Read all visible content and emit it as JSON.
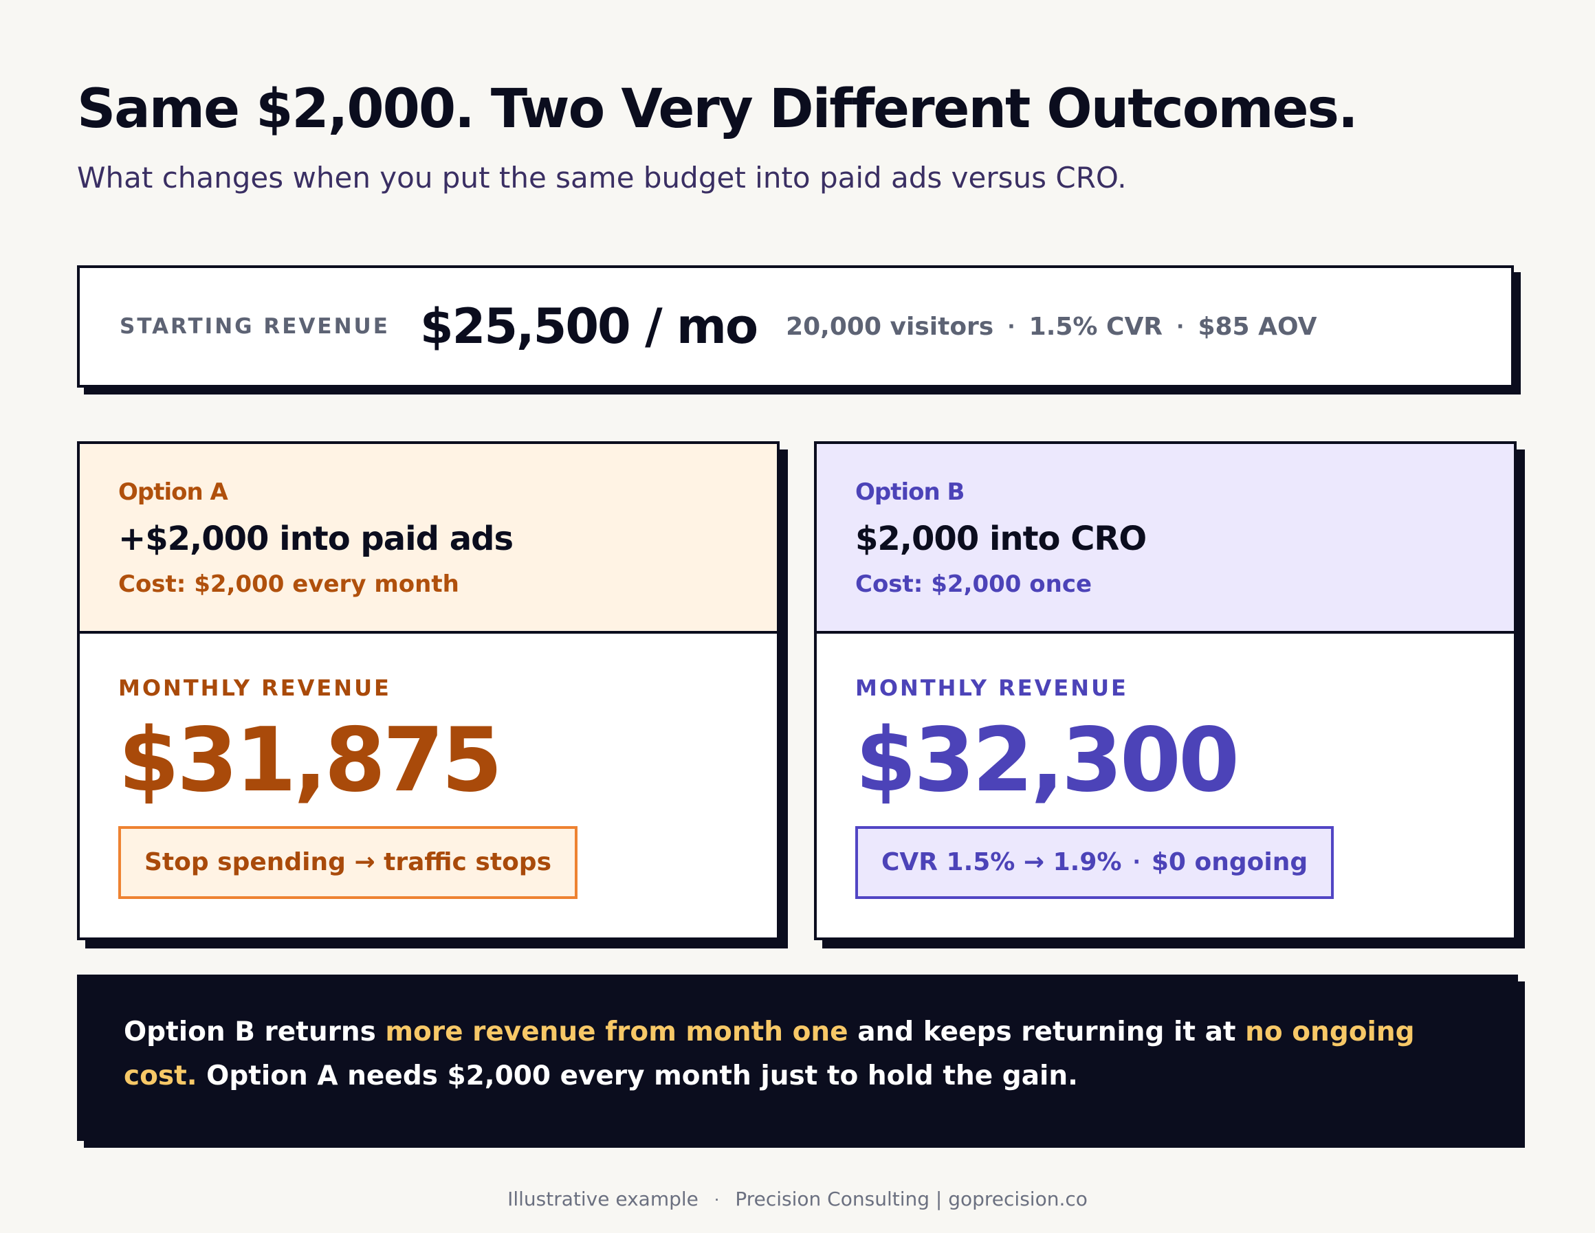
{
  "header": {
    "title": "Same $2,000. Two Very Different Outcomes.",
    "subtitle": "What changes when you put the same budget into paid ads versus CRO."
  },
  "starting": {
    "label": "STARTING REVENUE",
    "value": "$25,500 / mo",
    "metrics": [
      "20,000 visitors",
      "1.5% CVR",
      "$85 AOV"
    ],
    "separator": "·"
  },
  "option_a": {
    "label": "Option A",
    "title": "+$2,000 into paid ads",
    "cost": "Cost: $2,000 every month",
    "revenue_label": "MONTHLY REVENUE",
    "revenue_value": "$31,875",
    "note": "Stop spending → traffic stops",
    "accent": "#a94a0a"
  },
  "option_b": {
    "label": "Option B",
    "title": "$2,000 into CRO",
    "cost": "Cost: $2,000 once",
    "revenue_label": "MONTHLY REVENUE",
    "revenue_value": "$32,300",
    "note_part1": "CVR 1.5% → 1.9%",
    "note_sep": "·",
    "note_part2": "$0 ongoing",
    "accent": "#4c43b8"
  },
  "summary": {
    "part1": "Option B returns ",
    "highlight1": "more revenue from month one",
    "part2": " and keeps returning it at ",
    "highlight2": "no ongoing cost.",
    "part3": " Option A needs $2,000 every month just to hold the gain.",
    "highlight_color": "#f7c867"
  },
  "footer": {
    "left": "Illustrative example",
    "separator": "·",
    "right": "Precision Consulting | goprecision.co"
  }
}
